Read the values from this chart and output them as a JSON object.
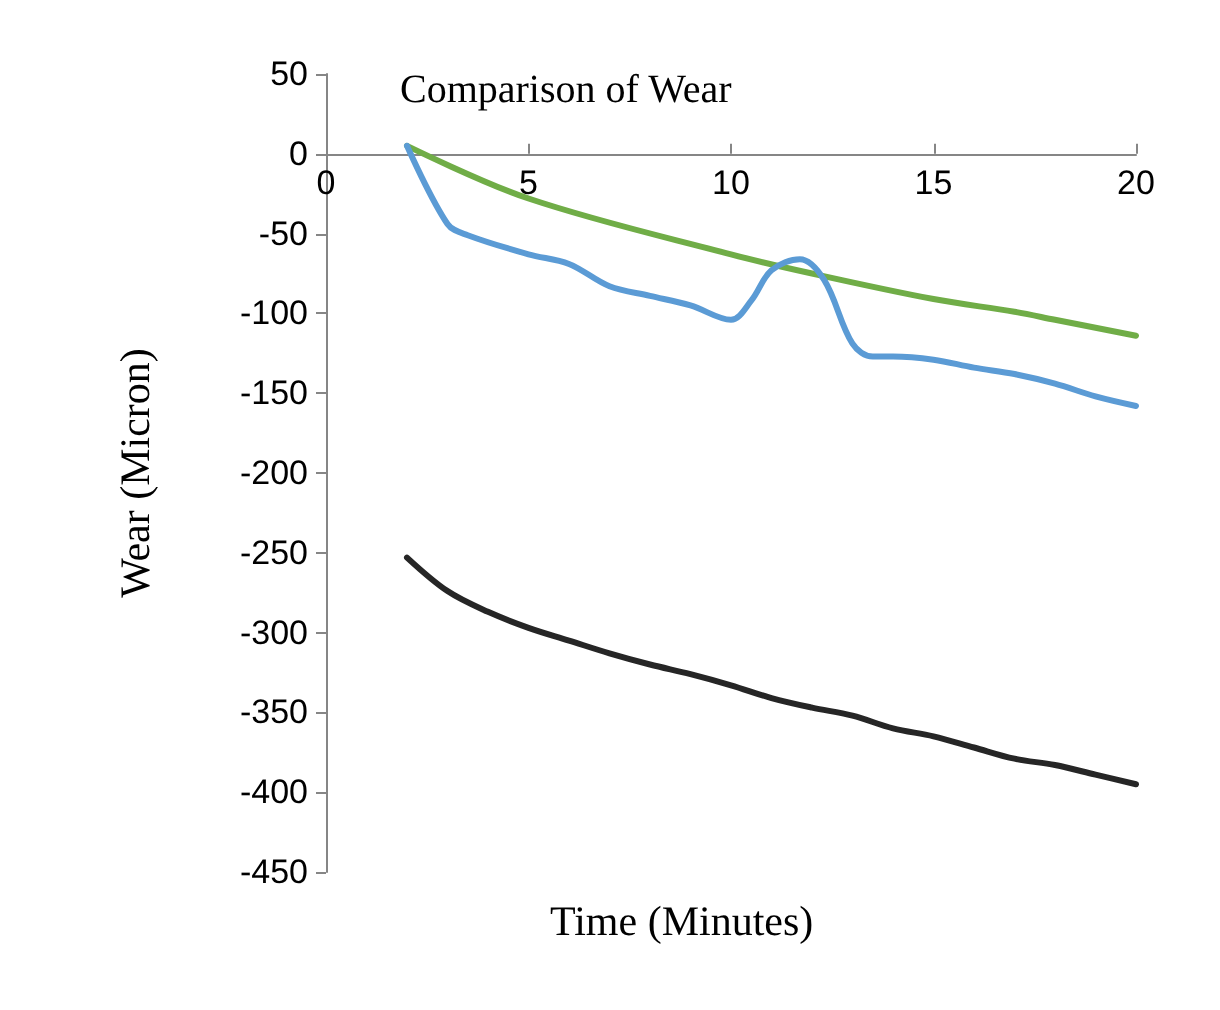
{
  "chart_data": {
    "type": "line",
    "title": "Comparison of Wear",
    "xlabel": "Time (Minutes)",
    "ylabel": "Wear (Micron)",
    "xlim": [
      0,
      20
    ],
    "xticks": [
      0,
      5,
      10,
      15,
      20
    ],
    "ylim": [
      -450,
      50
    ],
    "yticks": [
      -450,
      -400,
      -350,
      -300,
      -250,
      -200,
      -150,
      -100,
      -50,
      0,
      50
    ],
    "grid": false,
    "marker": "none",
    "line_style": "solid",
    "series": [
      {
        "color": "#70ad47",
        "x": [
          2,
          5,
          10,
          12,
          15,
          17,
          18,
          20
        ],
        "values": [
          5,
          -28,
          -63,
          -75,
          -91,
          -99,
          -104,
          -114
        ]
      },
      {
        "color": "#5b9bd5",
        "x": [
          2,
          3,
          3.5,
          5,
          6,
          7,
          8,
          9,
          10,
          10.5,
          11,
          11.7,
          12.3,
          13,
          13.5,
          14,
          15,
          16,
          17,
          18,
          19,
          20
        ],
        "values": [
          5,
          -44,
          -51,
          -63,
          -69,
          -83,
          -89,
          -95,
          -104,
          -92,
          -73,
          -66,
          -79,
          -119,
          -127,
          -127,
          -129,
          -134,
          -138,
          -144,
          -152,
          -158
        ]
      },
      {
        "color": "#262626",
        "x": [
          2,
          3,
          4,
          5,
          6,
          7,
          8,
          9,
          10,
          11,
          12,
          13,
          14,
          15,
          16,
          17,
          18,
          19,
          20
        ],
        "values": [
          -253,
          -274,
          -287,
          -297,
          -305,
          -313,
          -320,
          -326,
          -333,
          -341,
          -347,
          -352,
          -360,
          -365,
          -372,
          -379,
          -383,
          -389,
          -395
        ]
      }
    ]
  }
}
